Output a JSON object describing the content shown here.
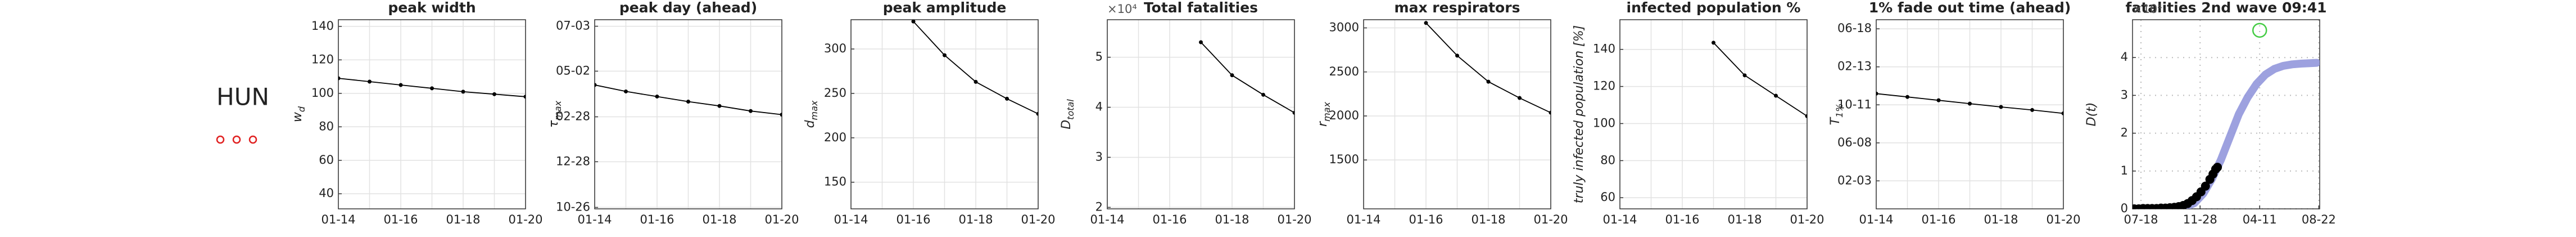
{
  "header": {
    "country": "HUN"
  },
  "chart_data": [
    {
      "type": "line",
      "title": "peak width",
      "ylabel": {
        "base": "w",
        "sub": "d"
      },
      "categories": [
        "01-14",
        null,
        "01-16",
        null,
        "01-18",
        null,
        "01-20"
      ],
      "values": [
        109,
        107,
        105,
        103,
        101,
        99.5,
        98
      ],
      "color": "#000000",
      "ylim": [
        31,
        144
      ],
      "yticks": [
        40,
        60,
        80,
        100,
        120,
        140
      ],
      "grid": true
    },
    {
      "type": "line",
      "title": "peak day (ahead)",
      "ylabel": {
        "base": "τ",
        "sub": "max"
      },
      "categories": [
        "01-14",
        null,
        "01-16",
        null,
        "01-18",
        null,
        "01-20"
      ],
      "values": [
        169,
        160,
        153,
        146,
        140,
        133,
        128
      ],
      "color": "#000000",
      "ylim": [
        -2,
        259
      ],
      "yticks": [
        {
          "value": 0,
          "label": "10-26"
        },
        {
          "value": 63,
          "label": "12-28"
        },
        {
          "value": 125,
          "label": "02-28"
        },
        {
          "value": 188,
          "label": "05-02"
        },
        {
          "value": 250,
          "label": "07-03"
        }
      ],
      "grid": true
    },
    {
      "type": "line",
      "title": "peak amplitude",
      "ylabel": {
        "base": "d",
        "sub": "max"
      },
      "categories": [
        "01-14",
        null,
        "01-16",
        null,
        "01-18",
        null,
        "01-20"
      ],
      "values": [
        null,
        null,
        331,
        293,
        263,
        244,
        227
      ],
      "color": "#000000",
      "ylim": [
        120,
        333
      ],
      "yticks": [
        150,
        200,
        250,
        300
      ],
      "grid": true
    },
    {
      "type": "line",
      "title": "Total fatalities",
      "multiplier": "×10⁴",
      "ylabel": {
        "base": "D",
        "sub": "total"
      },
      "categories": [
        "01-14",
        null,
        "01-16",
        null,
        "01-18",
        null,
        "01-20"
      ],
      "values": [
        null,
        null,
        null,
        5.3,
        4.64,
        4.25,
        3.89
      ],
      "color": "#000000",
      "ylim": [
        1.97,
        5.75
      ],
      "yticks": [
        2,
        3,
        4,
        5
      ],
      "grid": true
    },
    {
      "type": "line",
      "title": "max respirators",
      "ylabel": {
        "base": "r",
        "sub": "max"
      },
      "categories": [
        "01-14",
        null,
        "01-16",
        null,
        "01-18",
        null,
        "01-20"
      ],
      "values": [
        null,
        null,
        3056,
        2685,
        2389,
        2204,
        2037
      ],
      "color": "#000000",
      "ylim": [
        945,
        3093
      ],
      "yticks": [
        1500,
        2000,
        2500,
        3000
      ],
      "grid": true
    },
    {
      "type": "line",
      "title": "infected population %",
      "ylabel": {
        "base": "truly infected population [%]"
      },
      "categories": [
        "01-14",
        null,
        "01-16",
        null,
        "01-18",
        null,
        "01-20"
      ],
      "values": [
        null,
        null,
        null,
        143.6,
        126,
        115,
        104
      ],
      "color": "#000000",
      "ylim": [
        54,
        156
      ],
      "yticks": [
        60,
        80,
        100,
        120,
        140
      ],
      "grid": true
    },
    {
      "type": "line",
      "title": "1% fade out time (ahead)",
      "ylabel": {
        "base": "T",
        "sub": "1%"
      },
      "categories": [
        "01-14",
        null,
        "01-16",
        null,
        "01-18",
        null,
        "01-20"
      ],
      "values": [
        287,
        276,
        265,
        254,
        243,
        233,
        222
      ],
      "color": "#000000",
      "ylim": [
        -92,
        530
      ],
      "yticks": [
        {
          "value": 0,
          "label": "02-03"
        },
        {
          "value": 125,
          "label": "06-08"
        },
        {
          "value": 250,
          "label": "10-11"
        },
        {
          "value": 375,
          "label": "02-13"
        },
        {
          "value": 500,
          "label": "06-18"
        }
      ],
      "grid": true
    },
    {
      "type": "line",
      "title": "fatalities 2nd wave 09:41",
      "multiplier": "×10⁴",
      "ylabel": {
        "base": "D(t)"
      },
      "xlim": [
        -19,
        402
      ],
      "xticks": [
        {
          "value": 0,
          "label": "07-18"
        },
        {
          "value": 133,
          "label": "11-28"
        },
        {
          "value": 267,
          "label": "04-11"
        },
        {
          "value": 400,
          "label": "08-22"
        }
      ],
      "ylim": [
        0,
        5
      ],
      "yticks": [
        0,
        1,
        2,
        3,
        4
      ],
      "grid": "dotted",
      "series": [
        {
          "style": "line",
          "color": "#9297dc",
          "x": [
            -19,
            60,
            100,
            120,
            140,
            160,
            180,
            200,
            220,
            240,
            260,
            280,
            300,
            320,
            340,
            360,
            380,
            395
          ],
          "values": [
            0,
            0.01,
            0.05,
            0.15,
            0.4,
            0.8,
            1.3,
            1.9,
            2.5,
            2.95,
            3.3,
            3.55,
            3.7,
            3.78,
            3.82,
            3.84,
            3.85,
            3.86
          ]
        },
        {
          "style": "dots",
          "color": "#000000",
          "x": [
            -15,
            -5,
            5,
            15,
            25,
            35,
            45,
            55,
            65,
            75,
            85,
            95,
            105,
            115,
            125,
            135,
            145,
            155,
            162,
            168,
            172
          ],
          "values": [
            0,
            0,
            0.01,
            0.01,
            0.01,
            0.01,
            0.02,
            0.02,
            0.03,
            0.04,
            0.06,
            0.09,
            0.14,
            0.22,
            0.32,
            0.45,
            0.6,
            0.78,
            0.92,
            1.05,
            1.1
          ]
        },
        {
          "style": "open-circle",
          "color": "#44cc44",
          "x": [
            267
          ],
          "values": [
            4.72
          ]
        }
      ]
    }
  ]
}
